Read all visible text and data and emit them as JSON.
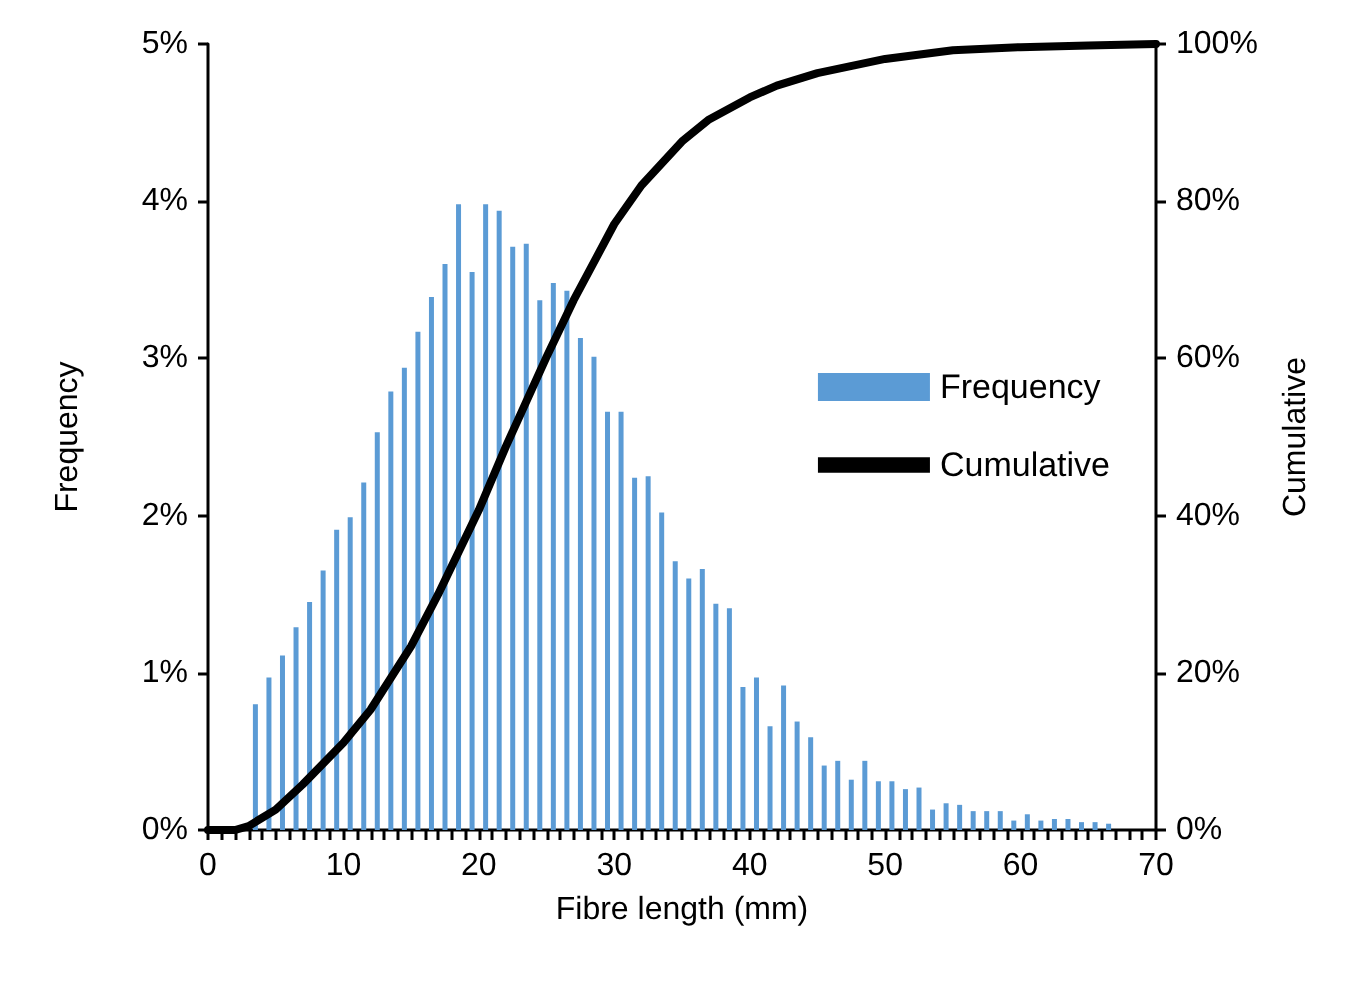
{
  "chart_data": {
    "type": "histogram",
    "xlabel": "Fibre length (mm)",
    "ylabel": "Frequency",
    "y2label": "Cumulative",
    "bins": [
      0,
      1,
      2,
      3,
      4,
      5,
      6,
      7,
      8,
      9,
      10,
      11,
      12,
      13,
      14,
      15,
      16,
      17,
      18,
      19,
      20,
      21,
      22,
      23,
      24,
      25,
      26,
      27,
      28,
      29,
      30,
      31,
      32,
      33,
      34,
      35,
      36,
      37,
      38,
      39,
      40,
      41,
      42,
      43,
      44,
      45,
      46,
      47,
      48,
      49,
      50,
      51,
      52,
      53,
      54,
      55,
      56,
      57,
      58,
      59,
      60,
      61,
      62,
      63,
      64,
      65,
      66,
      67,
      68,
      69,
      70
    ],
    "series": [
      {
        "name": "Frequency",
        "color": "#5b9bd5",
        "values": [
          0,
          0,
          0,
          0.8,
          0.97,
          1.11,
          1.29,
          1.45,
          1.65,
          1.91,
          1.99,
          2.21,
          2.53,
          2.79,
          2.94,
          3.17,
          3.39,
          3.6,
          3.98,
          3.55,
          3.98,
          3.94,
          3.71,
          3.73,
          3.37,
          3.48,
          3.43,
          3.13,
          3.01,
          2.66,
          2.66,
          2.24,
          2.25,
          2.02,
          1.71,
          1.6,
          1.66,
          1.44,
          1.41,
          0.91,
          0.97,
          0.66,
          0.92,
          0.69,
          0.59,
          0.41,
          0.44,
          0.32,
          0.44,
          0.31,
          0.31,
          0.26,
          0.27,
          0.13,
          0.17,
          0.16,
          0.12,
          0.12,
          0.12,
          0.06,
          0.1,
          0.06,
          0.07,
          0.07,
          0.05,
          0.05,
          0.04,
          0,
          0,
          0
        ]
      },
      {
        "name": "Cumulative",
        "type": "line",
        "axis": "y2",
        "color": "#000000",
        "x": [
          0,
          2,
          3,
          5,
          7,
          10,
          12,
          15,
          17,
          20,
          22,
          25,
          27,
          30,
          32,
          35,
          37,
          40,
          42,
          45,
          50,
          55,
          60,
          65,
          70
        ],
        "values": [
          0,
          0,
          0.5,
          2.6,
          5.8,
          11.1,
          15.3,
          23.4,
          30.0,
          40.7,
          48.8,
          60.2,
          67.4,
          77.1,
          82.0,
          87.6,
          90.4,
          93.2,
          94.7,
          96.3,
          98.1,
          99.2,
          99.6,
          99.8,
          100
        ]
      }
    ],
    "xlim": [
      0,
      70
    ],
    "xticks": [
      0,
      {
        "value": 1,
        "label": null
      },
      {
        "value": 2,
        "label": null
      },
      {
        "value": 3,
        "label": null
      },
      {
        "value": 4,
        "label": null
      },
      {
        "value": 5,
        "label": null
      },
      {
        "value": 6,
        "label": null
      },
      {
        "value": 7,
        "label": null
      },
      {
        "value": 8,
        "label": null
      },
      {
        "value": 9,
        "label": null
      },
      10,
      {
        "value": 11,
        "label": null
      },
      {
        "value": 12,
        "label": null
      },
      {
        "value": 13,
        "label": null
      },
      {
        "value": 14,
        "label": null
      },
      {
        "value": 15,
        "label": null
      },
      {
        "value": 16,
        "label": null
      },
      {
        "value": 17,
        "label": null
      },
      {
        "value": 18,
        "label": null
      },
      {
        "value": 19,
        "label": null
      },
      20,
      {
        "value": 21,
        "label": null
      },
      {
        "value": 22,
        "label": null
      },
      {
        "value": 23,
        "label": null
      },
      {
        "value": 24,
        "label": null
      },
      {
        "value": 25,
        "label": null
      },
      {
        "value": 26,
        "label": null
      },
      {
        "value": 27,
        "label": null
      },
      {
        "value": 28,
        "label": null
      },
      {
        "value": 29,
        "label": null
      },
      30,
      {
        "value": 31,
        "label": null
      },
      {
        "value": 32,
        "label": null
      },
      {
        "value": 33,
        "label": null
      },
      {
        "value": 34,
        "label": null
      },
      {
        "value": 35,
        "label": null
      },
      {
        "value": 36,
        "label": null
      },
      {
        "value": 37,
        "label": null
      },
      {
        "value": 38,
        "label": null
      },
      {
        "value": 39,
        "label": null
      },
      40,
      {
        "value": 41,
        "label": null
      },
      {
        "value": 42,
        "label": null
      },
      {
        "value": 43,
        "label": null
      },
      {
        "value": 44,
        "label": null
      },
      {
        "value": 45,
        "label": null
      },
      {
        "value": 46,
        "label": null
      },
      {
        "value": 47,
        "label": null
      },
      {
        "value": 48,
        "label": null
      },
      {
        "value": 49,
        "label": null
      },
      50,
      {
        "value": 51,
        "label": null
      },
      {
        "value": 52,
        "label": null
      },
      {
        "value": 53,
        "label": null
      },
      {
        "value": 54,
        "label": null
      },
      {
        "value": 55,
        "label": null
      },
      {
        "value": 56,
        "label": null
      },
      {
        "value": 57,
        "label": null
      },
      {
        "value": 58,
        "label": null
      },
      {
        "value": 59,
        "label": null
      },
      60,
      {
        "value": 61,
        "label": null
      },
      {
        "value": 62,
        "label": null
      },
      {
        "value": 63,
        "label": null
      },
      {
        "value": 64,
        "label": null
      },
      {
        "value": 65,
        "label": null
      },
      {
        "value": 66,
        "label": null
      },
      {
        "value": 67,
        "label": null
      },
      {
        "value": 68,
        "label": null
      },
      {
        "value": 69,
        "label": null
      },
      70
    ],
    "ylim": [
      0,
      5
    ],
    "yticks": [
      {
        "value": 0,
        "label": "0%"
      },
      {
        "value": 1,
        "label": "1%"
      },
      {
        "value": 2,
        "label": "2%"
      },
      {
        "value": 3,
        "label": "3%"
      },
      {
        "value": 4,
        "label": "4%"
      },
      {
        "value": 5,
        "label": "5%"
      }
    ],
    "y2lim": [
      0,
      100
    ],
    "y2ticks": [
      {
        "value": 0,
        "label": "0%"
      },
      {
        "value": 20,
        "label": "20%"
      },
      {
        "value": 40,
        "label": "40%"
      },
      {
        "value": 60,
        "label": "60%"
      },
      {
        "value": 80,
        "label": "80%"
      },
      {
        "value": 100,
        "label": "100%"
      }
    ],
    "grid": false,
    "legend": "right",
    "marker": "none",
    "line_style": "solid"
  }
}
